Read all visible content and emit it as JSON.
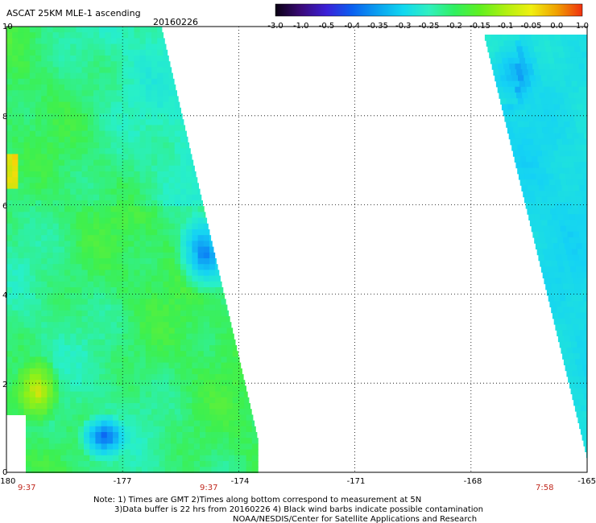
{
  "title": "ASCAT 25KM MLE-1 ascending",
  "date": "20160226",
  "colorbar": {
    "ticks": [
      "-3.0",
      "-1.0",
      "-0.5",
      "-0.4",
      "-0.35",
      "-0.3",
      "-0.25",
      "-0.2",
      "-0.15",
      "-0.1",
      "-0.05",
      "0.0",
      "1.0"
    ],
    "colors": [
      "#0a0012",
      "#3a0a78",
      "#3a20d8",
      "#0a60f0",
      "#0aa0f0",
      "#10d8f0",
      "#30f0c0",
      "#30f060",
      "#60f020",
      "#b0f010",
      "#f0f010",
      "#f0a000",
      "#f03010"
    ]
  },
  "map": {
    "x_ticks": [
      "-180",
      "-177",
      "-174",
      "-171",
      "-168",
      "-165"
    ],
    "y_ticks": [
      "0",
      "2",
      "4",
      "6",
      "8",
      "10"
    ],
    "grid": "dotted",
    "swaths": [
      {
        "lon_range": [
          -180,
          -173.5
        ],
        "time": "9:37",
        "time_lon": -180
      },
      {
        "lon_range": [
          -174.5,
          -174.5
        ],
        "time": "9:37",
        "time_lon": -174.5
      },
      {
        "lon_range": [
          -167.5,
          -165
        ],
        "time": "7:58",
        "time_lon": -166.5
      }
    ]
  },
  "notes": {
    "line1": "Note: 1) Times are GMT 2)Times along bottom correspond to measurement at 5N",
    "line2": "3)Data buffer is 22 hrs from 20160226 4) Black wind barbs indicate possible contamination",
    "line3": "NOAA/NESDIS/Center for Satellite Applications and Research"
  }
}
